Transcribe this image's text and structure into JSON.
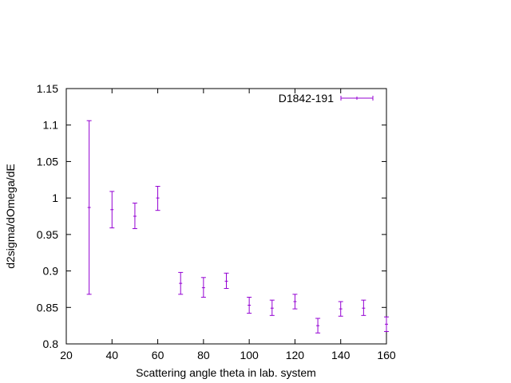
{
  "chart_data": {
    "type": "scatter",
    "title": "",
    "xlabel": "Scattering angle theta in lab. system",
    "ylabel": "d2sigma/dOmega/dE",
    "xlim": [
      20,
      160
    ],
    "ylim": [
      0.8,
      1.15
    ],
    "xticks": [
      "20",
      "40",
      "60",
      "80",
      "100",
      "120",
      "140",
      "160"
    ],
    "yticks": [
      "0.8",
      "0.85",
      "0.9",
      "0.95",
      "1",
      "1.05",
      "1.1",
      "1.15"
    ],
    "grid": false,
    "legend_position": "top-right",
    "series": [
      {
        "name": "D1842-191",
        "color": "#9400d3",
        "style": "y-errorbars",
        "points": [
          {
            "x": 30,
            "y": 0.987,
            "ylow": 0.868,
            "yhigh": 1.106
          },
          {
            "x": 40,
            "y": 0.984,
            "ylow": 0.959,
            "yhigh": 1.009
          },
          {
            "x": 50,
            "y": 0.975,
            "ylow": 0.958,
            "yhigh": 0.993
          },
          {
            "x": 60,
            "y": 1.0,
            "ylow": 0.983,
            "yhigh": 1.016
          },
          {
            "x": 70,
            "y": 0.883,
            "ylow": 0.868,
            "yhigh": 0.898
          },
          {
            "x": 80,
            "y": 0.877,
            "ylow": 0.864,
            "yhigh": 0.891
          },
          {
            "x": 90,
            "y": 0.886,
            "ylow": 0.876,
            "yhigh": 0.897
          },
          {
            "x": 100,
            "y": 0.853,
            "ylow": 0.842,
            "yhigh": 0.864
          },
          {
            "x": 110,
            "y": 0.849,
            "ylow": 0.839,
            "yhigh": 0.86
          },
          {
            "x": 120,
            "y": 0.858,
            "ylow": 0.848,
            "yhigh": 0.868
          },
          {
            "x": 130,
            "y": 0.825,
            "ylow": 0.815,
            "yhigh": 0.835
          },
          {
            "x": 140,
            "y": 0.848,
            "ylow": 0.838,
            "yhigh": 0.858
          },
          {
            "x": 150,
            "y": 0.849,
            "ylow": 0.839,
            "yhigh": 0.86
          },
          {
            "x": 160,
            "y": 0.827,
            "ylow": 0.817,
            "yhigh": 0.837
          }
        ]
      }
    ]
  }
}
